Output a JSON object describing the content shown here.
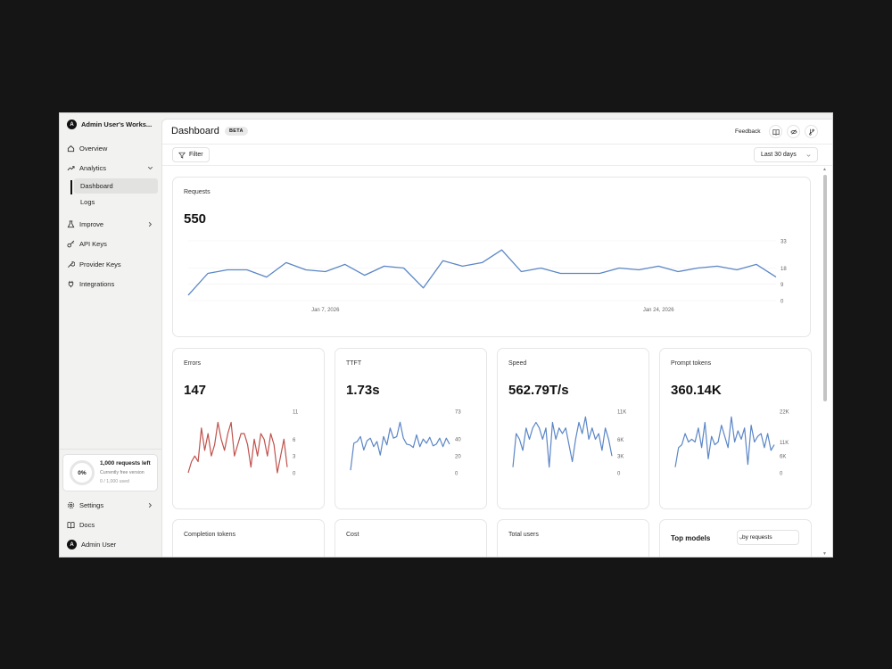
{
  "sidebar": {
    "workspace": "Admin User's Works...",
    "workspace_initial": "A",
    "nav": [
      {
        "label": "Overview",
        "icon": "home-icon"
      },
      {
        "label": "Analytics",
        "icon": "trending-up-icon",
        "expanded": true
      },
      {
        "label": "Improve",
        "icon": "flask-icon"
      },
      {
        "label": "API Keys",
        "icon": "key-icon"
      },
      {
        "label": "Provider Keys",
        "icon": "wrench-icon"
      },
      {
        "label": "Integrations",
        "icon": "plug-icon"
      }
    ],
    "analytics_sub": [
      {
        "label": "Dashboard",
        "active": true
      },
      {
        "label": "Logs"
      }
    ],
    "usage": {
      "percent_label": "0%",
      "percent": 0,
      "title": "1,000 requests left",
      "plan": "Currently free version",
      "used": "0 / 1,000 used"
    },
    "bottom": {
      "settings": "Settings",
      "docs": "Docs",
      "user": "Admin User",
      "user_initial": "A"
    }
  },
  "header": {
    "title": "Dashboard",
    "badge": "BETA",
    "feedback": "Feedback",
    "icons": [
      "book-icon",
      "eye-off-icon",
      "git-branch-icon"
    ]
  },
  "toolbar": {
    "filter": "Filter",
    "range": "Last 30 days"
  },
  "colors": {
    "blue": "#5b86c6",
    "red": "#c0524d",
    "grid": "#f0f0f0"
  },
  "requests_card": {
    "title": "Requests",
    "value": "550",
    "chart_data": {
      "type": "line",
      "yticks": [
        "33",
        "18",
        "9",
        "0"
      ],
      "yticks_values": [
        33,
        18,
        9,
        0
      ],
      "ylim": [
        0,
        33
      ],
      "xticks": [
        "Jan 7, 2026",
        "Jan 24, 2026"
      ],
      "xticks_index": [
        7,
        24
      ],
      "values": [
        3,
        15,
        17,
        17,
        13,
        21,
        17,
        16,
        20,
        14,
        19,
        18,
        7,
        22,
        19,
        21,
        28,
        16,
        18,
        15,
        15,
        15,
        18,
        17,
        19,
        16,
        18,
        19,
        17,
        20,
        13
      ]
    }
  },
  "small_cards": [
    {
      "title": "Errors",
      "value": "147",
      "color": "red",
      "yticks": [
        "11",
        "6",
        "3",
        "0"
      ],
      "yticks_values": [
        11,
        6,
        3,
        0
      ],
      "ylim": [
        0,
        11
      ],
      "values": [
        0,
        2,
        3,
        2,
        8,
        4,
        7,
        3,
        5,
        9,
        6,
        4,
        7,
        9,
        3,
        5,
        7,
        7,
        5,
        1,
        6,
        3,
        7,
        6,
        3,
        7,
        5,
        0,
        3,
        6,
        1
      ]
    },
    {
      "title": "TTFT",
      "value": "1.73s",
      "color": "blue",
      "yticks": [
        "73",
        "40",
        "20",
        "0"
      ],
      "yticks_values": [
        73,
        40,
        20,
        0
      ],
      "ylim": [
        0,
        73
      ],
      "values": [
        3,
        35,
        37,
        43,
        27,
        38,
        41,
        31,
        37,
        21,
        43,
        33,
        53,
        41,
        43,
        60,
        41,
        34,
        33,
        30,
        45,
        31,
        40,
        35,
        42,
        32,
        34,
        41,
        31,
        41,
        34
      ]
    },
    {
      "title": "Speed",
      "value": "562.79T/s",
      "color": "blue",
      "yticks": [
        "11K",
        "6K",
        "3K",
        "0"
      ],
      "yticks_values": [
        11,
        6,
        3,
        0
      ],
      "ylim": [
        0,
        11
      ],
      "values": [
        1,
        7,
        6,
        4,
        8,
        6,
        8,
        9,
        8,
        6,
        8,
        1,
        9,
        6,
        8,
        7,
        8,
        5,
        2,
        6,
        9,
        7,
        10,
        6,
        8,
        6,
        7,
        4,
        8,
        6,
        3
      ]
    },
    {
      "title": "Prompt tokens",
      "value": "360.14K",
      "color": "blue",
      "yticks": [
        "22K",
        "11K",
        "6K",
        "0"
      ],
      "yticks_values": [
        22,
        11,
        6,
        0
      ],
      "ylim": [
        0,
        22
      ],
      "values": [
        2,
        9,
        10,
        14,
        11,
        12,
        11,
        16,
        9,
        18,
        5,
        13,
        10,
        11,
        17,
        13,
        9,
        20,
        11,
        15,
        12,
        16,
        3,
        17,
        11,
        13,
        14,
        9,
        14,
        8,
        10
      ]
    }
  ],
  "bottom_cards": [
    {
      "title": "Completion tokens"
    },
    {
      "title": "Cost"
    },
    {
      "title": "Total users"
    }
  ],
  "top_models": {
    "title": "Top models",
    "select": "by requests"
  }
}
